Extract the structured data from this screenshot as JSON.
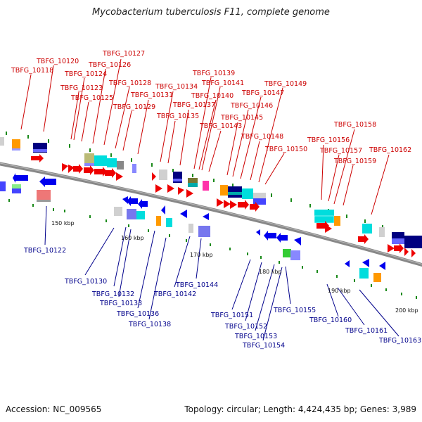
{
  "title": "Mycobacterium tuberculosis F11, complete genome",
  "footer": {
    "accession": "Accession: NC_009565",
    "summary": "Topology: circular; Length: 4,424,435 bp; Genes: 3,989"
  },
  "scale_labels": [
    "150 kbp",
    "160 kbp",
    "170 kbp",
    "180 kbp",
    "190 kbp",
    "200 kbp"
  ],
  "top_labels": [
    "TBFG_10118",
    "TBFG_10120",
    "TBFG_10123",
    "TBFG_10124",
    "TBFG_10125",
    "TBFG_10126",
    "TBFG_10127",
    "TBFG_10128",
    "TBFG_10129",
    "TBFG_10131",
    "TBFG_10134",
    "TBFG_10135",
    "TBFG_10137",
    "TBFG_10139",
    "TBFG_10140",
    "TBFG_10141",
    "TBFG_10143",
    "TBFG_10145",
    "TBFG_10146",
    "TBFG_10147",
    "TBFG_10148",
    "TBFG_10149",
    "TBFG_10150",
    "TBFG_10156",
    "TBFG_10157",
    "TBFG_10158",
    "TBFG_10159",
    "TBFG_10162"
  ],
  "bottom_labels": [
    "TBFG_10122",
    "TBFG_10130",
    "TBFG_10132",
    "TBFG_10133",
    "TBFG_10136",
    "TBFG_10138",
    "TBFG_10142",
    "TBFG_10144",
    "TBFG_10151",
    "TBFG_10152",
    "TBFG_10153",
    "TBFG_10154",
    "TBFG_10155",
    "TBFG_10160",
    "TBFG_10161",
    "TBFG_10163"
  ],
  "colors": {
    "forward": "#ee0000",
    "reverse": "#0000ee",
    "backbone": "#888888",
    "label_top": "#cc0000",
    "label_bottom": "#00008b",
    "tick": "#1a8a1a"
  }
}
